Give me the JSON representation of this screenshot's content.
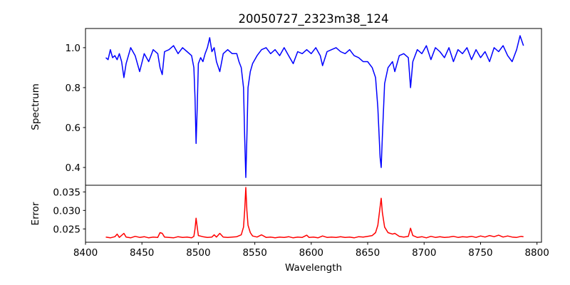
{
  "chart_data": [
    {
      "type": "line",
      "title": "20050727_2323m38_124",
      "xlabel": "",
      "ylabel": "Spectrum",
      "xlim": [
        8400,
        8804
      ],
      "ylim": [
        0.311,
        1.096
      ],
      "yticks": [
        0.4,
        0.6,
        0.8,
        1.0
      ],
      "ytick_labels": [
        "0.4",
        "0.6",
        "0.8",
        "1.0"
      ],
      "grid": false,
      "series": [
        {
          "name": "Spectrum",
          "color": "#0000ff",
          "points": [
            [
              8418,
              0.95
            ],
            [
              8420,
              0.94
            ],
            [
              8422,
              0.99
            ],
            [
              8424,
              0.95
            ],
            [
              8426,
              0.96
            ],
            [
              8428,
              0.94
            ],
            [
              8430,
              0.97
            ],
            [
              8432,
              0.93
            ],
            [
              8434,
              0.85
            ],
            [
              8436,
              0.92
            ],
            [
              8440,
              1.0
            ],
            [
              8444,
              0.96
            ],
            [
              8448,
              0.88
            ],
            [
              8452,
              0.97
            ],
            [
              8456,
              0.93
            ],
            [
              8460,
              0.99
            ],
            [
              8464,
              0.97
            ],
            [
              8466,
              0.9
            ],
            [
              8468,
              0.865
            ],
            [
              8470,
              0.98
            ],
            [
              8474,
              0.99
            ],
            [
              8478,
              1.01
            ],
            [
              8482,
              0.97
            ],
            [
              8486,
              1.0
            ],
            [
              8490,
              0.98
            ],
            [
              8494,
              0.96
            ],
            [
              8496,
              0.9
            ],
            [
              8497,
              0.75
            ],
            [
              8498,
              0.52
            ],
            [
              8499,
              0.7
            ],
            [
              8500,
              0.92
            ],
            [
              8502,
              0.95
            ],
            [
              8504,
              0.93
            ],
            [
              8506,
              0.97
            ],
            [
              8508,
              1.0
            ],
            [
              8510,
              1.05
            ],
            [
              8512,
              0.98
            ],
            [
              8514,
              1.0
            ],
            [
              8516,
              0.93
            ],
            [
              8519,
              0.88
            ],
            [
              8522,
              0.97
            ],
            [
              8526,
              0.99
            ],
            [
              8530,
              0.97
            ],
            [
              8534,
              0.97
            ],
            [
              8536,
              0.93
            ],
            [
              8538,
              0.9
            ],
            [
              8540,
              0.8
            ],
            [
              8541,
              0.55
            ],
            [
              8542,
              0.35
            ],
            [
              8543,
              0.55
            ],
            [
              8544,
              0.8
            ],
            [
              8546,
              0.88
            ],
            [
              8548,
              0.92
            ],
            [
              8552,
              0.96
            ],
            [
              8556,
              0.99
            ],
            [
              8560,
              1.0
            ],
            [
              8564,
              0.97
            ],
            [
              8568,
              0.99
            ],
            [
              8572,
              0.96
            ],
            [
              8576,
              1.0
            ],
            [
              8580,
              0.96
            ],
            [
              8584,
              0.92
            ],
            [
              8588,
              0.98
            ],
            [
              8592,
              0.97
            ],
            [
              8596,
              0.99
            ],
            [
              8600,
              0.97
            ],
            [
              8604,
              1.0
            ],
            [
              8608,
              0.96
            ],
            [
              8610,
              0.91
            ],
            [
              8614,
              0.98
            ],
            [
              8618,
              0.99
            ],
            [
              8622,
              1.0
            ],
            [
              8626,
              0.98
            ],
            [
              8630,
              0.97
            ],
            [
              8634,
              0.99
            ],
            [
              8638,
              0.96
            ],
            [
              8642,
              0.95
            ],
            [
              8646,
              0.93
            ],
            [
              8650,
              0.93
            ],
            [
              8654,
              0.9
            ],
            [
              8657,
              0.85
            ],
            [
              8659,
              0.7
            ],
            [
              8661,
              0.45
            ],
            [
              8662,
              0.4
            ],
            [
              8663,
              0.55
            ],
            [
              8665,
              0.82
            ],
            [
              8668,
              0.9
            ],
            [
              8672,
              0.93
            ],
            [
              8674,
              0.88
            ],
            [
              8678,
              0.96
            ],
            [
              8682,
              0.97
            ],
            [
              8686,
              0.95
            ],
            [
              8688,
              0.8
            ],
            [
              8690,
              0.93
            ],
            [
              8694,
              0.99
            ],
            [
              8698,
              0.97
            ],
            [
              8702,
              1.01
            ],
            [
              8706,
              0.94
            ],
            [
              8710,
              1.0
            ],
            [
              8714,
              0.98
            ],
            [
              8718,
              0.95
            ],
            [
              8722,
              1.0
            ],
            [
              8726,
              0.93
            ],
            [
              8730,
              0.99
            ],
            [
              8734,
              0.97
            ],
            [
              8738,
              1.0
            ],
            [
              8742,
              0.94
            ],
            [
              8746,
              0.99
            ],
            [
              8750,
              0.95
            ],
            [
              8754,
              0.98
            ],
            [
              8758,
              0.93
            ],
            [
              8762,
              1.0
            ],
            [
              8766,
              0.98
            ],
            [
              8770,
              1.01
            ],
            [
              8774,
              0.96
            ],
            [
              8778,
              0.93
            ],
            [
              8782,
              0.99
            ],
            [
              8785,
              1.06
            ],
            [
              8788,
              1.01
            ]
          ]
        }
      ]
    },
    {
      "type": "line",
      "xlabel": "Wavelength",
      "ylabel": "Error",
      "xlim": [
        8400,
        8804
      ],
      "ylim": [
        0.0214,
        0.0368
      ],
      "xticks": [
        8400,
        8450,
        8500,
        8550,
        8600,
        8650,
        8700,
        8750,
        8800
      ],
      "xtick_labels": [
        "8400",
        "8450",
        "8500",
        "8550",
        "8600",
        "8650",
        "8700",
        "8750",
        "8800"
      ],
      "yticks": [
        0.025,
        0.03,
        0.035
      ],
      "ytick_labels": [
        "0.025",
        "0.030",
        "0.035"
      ],
      "grid": false,
      "series": [
        {
          "name": "Error",
          "color": "#ff0000",
          "points": [
            [
              8418,
              0.0228
            ],
            [
              8422,
              0.0226
            ],
            [
              8426,
              0.0229
            ],
            [
              8428,
              0.0236
            ],
            [
              8430,
              0.0227
            ],
            [
              8434,
              0.0238
            ],
            [
              8436,
              0.0228
            ],
            [
              8440,
              0.0226
            ],
            [
              8444,
              0.023
            ],
            [
              8448,
              0.0227
            ],
            [
              8452,
              0.0229
            ],
            [
              8456,
              0.0226
            ],
            [
              8460,
              0.0228
            ],
            [
              8464,
              0.0227
            ],
            [
              8466,
              0.024
            ],
            [
              8468,
              0.0238
            ],
            [
              8470,
              0.0228
            ],
            [
              8474,
              0.0227
            ],
            [
              8478,
              0.0226
            ],
            [
              8482,
              0.0229
            ],
            [
              8486,
              0.0227
            ],
            [
              8490,
              0.0228
            ],
            [
              8494,
              0.0226
            ],
            [
              8496,
              0.023
            ],
            [
              8497,
              0.025
            ],
            [
              8498,
              0.0279
            ],
            [
              8499,
              0.0255
            ],
            [
              8500,
              0.0232
            ],
            [
              8504,
              0.0229
            ],
            [
              8508,
              0.0227
            ],
            [
              8512,
              0.0228
            ],
            [
              8514,
              0.0234
            ],
            [
              8516,
              0.0228
            ],
            [
              8519,
              0.0238
            ],
            [
              8522,
              0.0228
            ],
            [
              8526,
              0.0227
            ],
            [
              8530,
              0.0228
            ],
            [
              8534,
              0.0229
            ],
            [
              8538,
              0.0234
            ],
            [
              8540,
              0.0255
            ],
            [
              8541,
              0.03
            ],
            [
              8542,
              0.0362
            ],
            [
              8543,
              0.03
            ],
            [
              8544,
              0.026
            ],
            [
              8546,
              0.024
            ],
            [
              8548,
              0.0231
            ],
            [
              8552,
              0.0228
            ],
            [
              8556,
              0.0234
            ],
            [
              8560,
              0.0227
            ],
            [
              8564,
              0.0228
            ],
            [
              8568,
              0.0226
            ],
            [
              8572,
              0.0228
            ],
            [
              8576,
              0.0227
            ],
            [
              8580,
              0.0229
            ],
            [
              8584,
              0.0226
            ],
            [
              8588,
              0.0228
            ],
            [
              8592,
              0.0227
            ],
            [
              8596,
              0.0233
            ],
            [
              8598,
              0.0227
            ],
            [
              8602,
              0.0228
            ],
            [
              8606,
              0.0226
            ],
            [
              8610,
              0.0231
            ],
            [
              8614,
              0.0227
            ],
            [
              8618,
              0.0228
            ],
            [
              8622,
              0.0227
            ],
            [
              8626,
              0.0229
            ],
            [
              8630,
              0.0227
            ],
            [
              8634,
              0.0228
            ],
            [
              8638,
              0.0226
            ],
            [
              8642,
              0.0229
            ],
            [
              8646,
              0.0228
            ],
            [
              8650,
              0.023
            ],
            [
              8654,
              0.0232
            ],
            [
              8657,
              0.024
            ],
            [
              8659,
              0.026
            ],
            [
              8661,
              0.031
            ],
            [
              8662,
              0.0333
            ],
            [
              8663,
              0.0295
            ],
            [
              8665,
              0.0255
            ],
            [
              8668,
              0.024
            ],
            [
              8672,
              0.0236
            ],
            [
              8674,
              0.0238
            ],
            [
              8678,
              0.023
            ],
            [
              8682,
              0.0228
            ],
            [
              8686,
              0.023
            ],
            [
              8688,
              0.0252
            ],
            [
              8690,
              0.0232
            ],
            [
              8694,
              0.0227
            ],
            [
              8698,
              0.0229
            ],
            [
              8702,
              0.0226
            ],
            [
              8706,
              0.023
            ],
            [
              8710,
              0.0227
            ],
            [
              8714,
              0.0229
            ],
            [
              8718,
              0.0227
            ],
            [
              8722,
              0.0228
            ],
            [
              8726,
              0.023
            ],
            [
              8730,
              0.0227
            ],
            [
              8734,
              0.0229
            ],
            [
              8738,
              0.0228
            ],
            [
              8742,
              0.023
            ],
            [
              8746,
              0.0227
            ],
            [
              8750,
              0.0231
            ],
            [
              8754,
              0.0228
            ],
            [
              8758,
              0.0232
            ],
            [
              8762,
              0.0229
            ],
            [
              8766,
              0.0233
            ],
            [
              8770,
              0.0228
            ],
            [
              8774,
              0.0231
            ],
            [
              8778,
              0.0228
            ],
            [
              8782,
              0.0227
            ],
            [
              8786,
              0.023
            ],
            [
              8788,
              0.0229
            ]
          ]
        }
      ]
    }
  ]
}
